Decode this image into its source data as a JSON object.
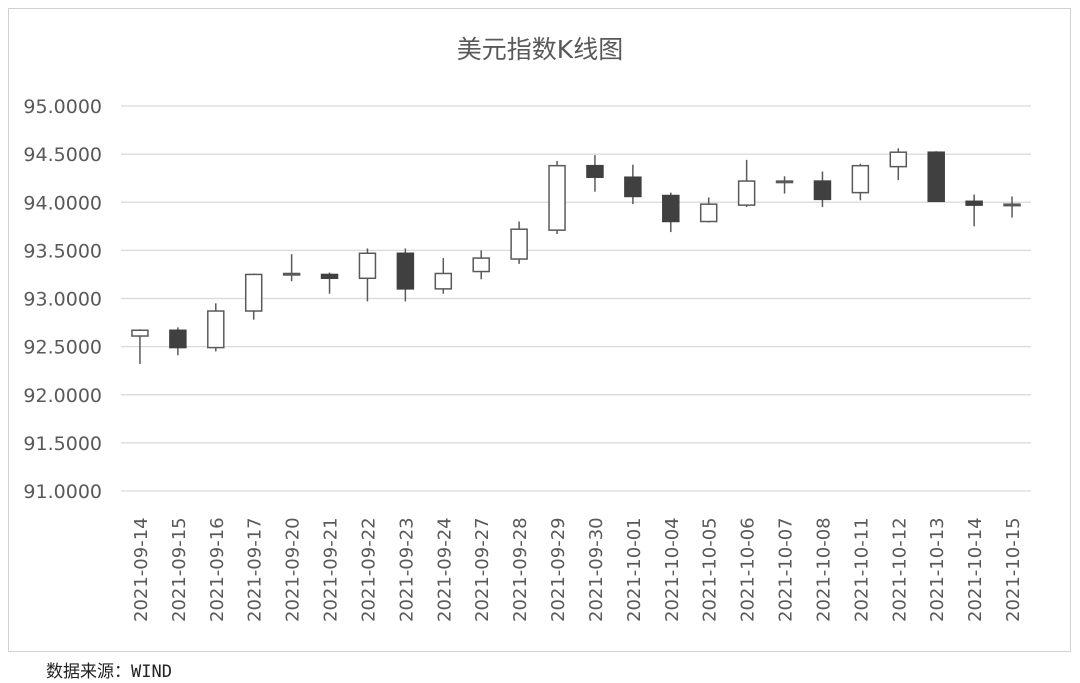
{
  "chart_data": {
    "type": "candlestick",
    "title": "美元指数K线图",
    "xlabel": "",
    "ylabel": "",
    "ylim": [
      91.0,
      95.0
    ],
    "y_ticks": [
      "91.0000",
      "91.5000",
      "92.0000",
      "92.5000",
      "93.0000",
      "93.5000",
      "94.0000",
      "94.5000",
      "95.0000"
    ],
    "grid": true,
    "legend": "none",
    "colors": {
      "up_fill": "#ffffff",
      "down_fill": "#404040",
      "stroke": "#595959",
      "grid": "#d9d9d9"
    },
    "categories": [
      "2021-09-14",
      "2021-09-15",
      "2021-09-16",
      "2021-09-17",
      "2021-09-20",
      "2021-09-21",
      "2021-09-22",
      "2021-09-23",
      "2021-09-24",
      "2021-09-27",
      "2021-09-28",
      "2021-09-29",
      "2021-09-30",
      "2021-10-01",
      "2021-10-04",
      "2021-10-05",
      "2021-10-06",
      "2021-10-07",
      "2021-10-08",
      "2021-10-11",
      "2021-10-12",
      "2021-10-13",
      "2021-10-14",
      "2021-10-15"
    ],
    "open": [
      92.61,
      92.67,
      92.49,
      92.87,
      93.25,
      93.25,
      93.21,
      93.47,
      93.1,
      93.28,
      93.41,
      93.71,
      94.38,
      94.26,
      94.07,
      93.8,
      93.97,
      94.21,
      94.22,
      94.1,
      94.37,
      94.52,
      94.01,
      93.97
    ],
    "high": [
      92.68,
      92.7,
      92.95,
      93.26,
      93.46,
      93.27,
      93.52,
      93.52,
      93.42,
      93.5,
      93.8,
      94.43,
      94.49,
      94.39,
      94.1,
      94.05,
      94.44,
      94.27,
      94.32,
      94.4,
      94.56,
      94.53,
      94.08,
      94.06
    ],
    "low": [
      92.32,
      92.41,
      92.45,
      92.78,
      93.18,
      93.05,
      92.97,
      92.97,
      93.05,
      93.2,
      93.36,
      93.67,
      94.11,
      93.98,
      93.69,
      93.79,
      93.95,
      94.09,
      93.95,
      94.02,
      94.23,
      94.01,
      93.75,
      93.84
    ],
    "close": [
      92.67,
      92.49,
      92.87,
      93.25,
      93.26,
      93.21,
      93.47,
      93.1,
      93.26,
      93.42,
      93.72,
      94.38,
      94.26,
      94.06,
      93.8,
      93.98,
      94.22,
      94.22,
      94.03,
      94.38,
      94.52,
      94.01,
      93.97,
      93.98
    ]
  },
  "source": "数据来源：WIND"
}
